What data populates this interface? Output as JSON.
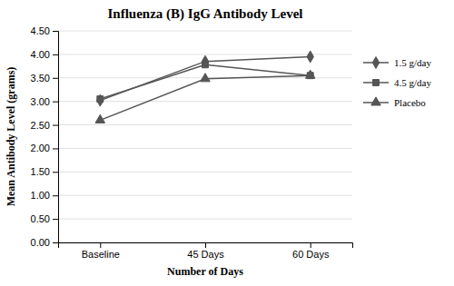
{
  "chart_data": {
    "type": "line",
    "title": "Influenza (B) IgG Antibody Level",
    "x_label": "Number of Days",
    "y_label": "Mean Antibody Level (grams)",
    "categories": [
      "Baseline",
      "45 Days",
      "60 Days"
    ],
    "series": [
      {
        "name": "1.5 g/day",
        "color": "#555555",
        "marker": "diamond",
        "values": [
          3.02,
          3.85,
          3.95
        ]
      },
      {
        "name": "4.5 g/day",
        "color": "#555555",
        "marker": "square",
        "values": [
          3.05,
          3.78,
          3.55
        ]
      },
      {
        "name": "Placebo",
        "color": "#555555",
        "marker": "triangle",
        "values": [
          2.6,
          3.48,
          3.55
        ]
      }
    ],
    "ylim": [
      0.0,
      4.5
    ],
    "yticks": [
      {
        "value": 0.0,
        "label": "0.00"
      },
      {
        "value": 0.5,
        "label": "0.50"
      },
      {
        "value": 1.0,
        "label": "1.00"
      },
      {
        "value": 1.5,
        "label": "1.50"
      },
      {
        "value": 2.0,
        "label": "2.00"
      },
      {
        "value": 2.5,
        "label": "2.50"
      },
      {
        "value": 3.0,
        "label": "3.00"
      },
      {
        "value": 3.5,
        "label": "3.50"
      },
      {
        "value": 4.0,
        "label": "4.00"
      },
      {
        "value": 4.5,
        "label": "4.50"
      }
    ],
    "grid": "y",
    "legend": "right"
  }
}
